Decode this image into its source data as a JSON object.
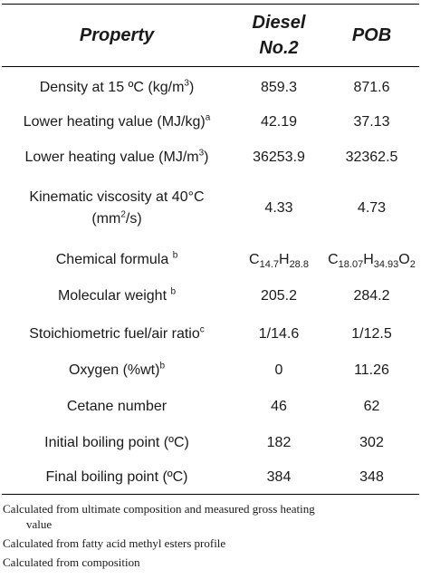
{
  "header": {
    "property": "Property",
    "diesel": "Diesel No.2",
    "pob": "POB"
  },
  "rows": [
    {
      "property": "Density at 15 ºC (kg/m",
      "property_sup": "3",
      "property_tail": ")",
      "diesel": "859.3",
      "pob": "871.6"
    },
    {
      "property": "Lower heating value (MJ/kg)",
      "property_sup": "a",
      "property_tail": "",
      "diesel": "42.19",
      "pob": "37.13"
    },
    {
      "property": "Lower heating value (MJ/m",
      "property_sup": "3",
      "property_tail": ")",
      "diesel": "36253.9",
      "pob": "32362.5"
    },
    {
      "property": "Kinematic viscosity at 40°C",
      "property_line2": "(mm",
      "property_sup": "2",
      "property_tail": "/s)",
      "diesel": "4.33",
      "pob": "4.73"
    },
    {
      "property": "Chemical formula",
      "property_sup": "b",
      "property_tail": "",
      "diesel": {
        "c": "C",
        "c_sub": "14.7",
        "h": "H",
        "h_sub": "28.8"
      },
      "pob": {
        "c": "C",
        "c_sub": "18.07",
        "h": "H",
        "h_sub": "34.93",
        "o": "O",
        "o_sub": "2"
      }
    },
    {
      "property": "Molecular weight",
      "property_sup": "b",
      "property_tail": "",
      "diesel": "205.2",
      "pob": "284.2"
    },
    {
      "property": "Stoichiometric fuel/air ratio",
      "property_sup": "c",
      "property_tail": "",
      "diesel": "1/14.6",
      "pob": "1/12.5"
    },
    {
      "property": "Oxygen (%wt)",
      "property_sup": "b",
      "property_tail": "",
      "diesel": "0",
      "pob": "11.26"
    },
    {
      "property": "Cetane number",
      "property_sup": "",
      "property_tail": "",
      "diesel": "46",
      "pob": "62"
    },
    {
      "property": "Initial boiling point (ºC)",
      "property_sup": "",
      "property_tail": "",
      "diesel": "182",
      "pob": "302"
    },
    {
      "property": "Final boiling point (ºC)",
      "property_sup": "",
      "property_tail": "",
      "diesel": "384",
      "pob": "348"
    }
  ],
  "notes": [
    {
      "line1": "Calculated from ultimate composition and measured gross heating",
      "line2": "value"
    },
    {
      "line1": "Calculated from fatty acid methyl esters profile"
    },
    {
      "line1": "Calculated from composition"
    }
  ]
}
